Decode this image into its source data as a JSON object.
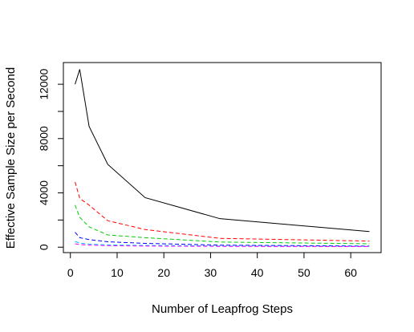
{
  "chart_data": {
    "type": "line",
    "title": "",
    "xlabel": "Number of Leapfrog Steps",
    "ylabel": "Effective Sample Size per Second",
    "xlim": [
      -1.5,
      66.5
    ],
    "ylim": [
      -400,
      13600
    ],
    "xticks": [
      0,
      10,
      20,
      30,
      40,
      50,
      60
    ],
    "yticks": [
      0,
      4000,
      8000,
      12000
    ],
    "yticks_minor": [
      2000,
      6000,
      10000
    ],
    "grid": false,
    "legend": "none",
    "x": [
      1,
      2,
      4,
      8,
      16,
      32,
      64
    ],
    "series": [
      {
        "values": [
          12000,
          13100,
          8900,
          6100,
          3650,
          2100,
          1150
        ],
        "color": "#000000",
        "dash": "solid"
      },
      {
        "values": [
          4800,
          3600,
          3100,
          1950,
          1300,
          650,
          450
        ],
        "color": "#ff0000",
        "dash": "dashed"
      },
      {
        "values": [
          3100,
          2200,
          1500,
          900,
          700,
          380,
          250
        ],
        "color": "#00cd00",
        "dash": "dashed"
      },
      {
        "values": [
          1100,
          700,
          560,
          400,
          280,
          150,
          80
        ],
        "color": "#0000ff",
        "dash": "dashed"
      },
      {
        "values": [
          420,
          300,
          230,
          170,
          130,
          90,
          60
        ],
        "color": "#00bfff",
        "dash": "dashed"
      },
      {
        "values": [
          250,
          200,
          150,
          110,
          80,
          60,
          40
        ],
        "color": "#ff00ff",
        "dash": "dashed"
      }
    ]
  }
}
